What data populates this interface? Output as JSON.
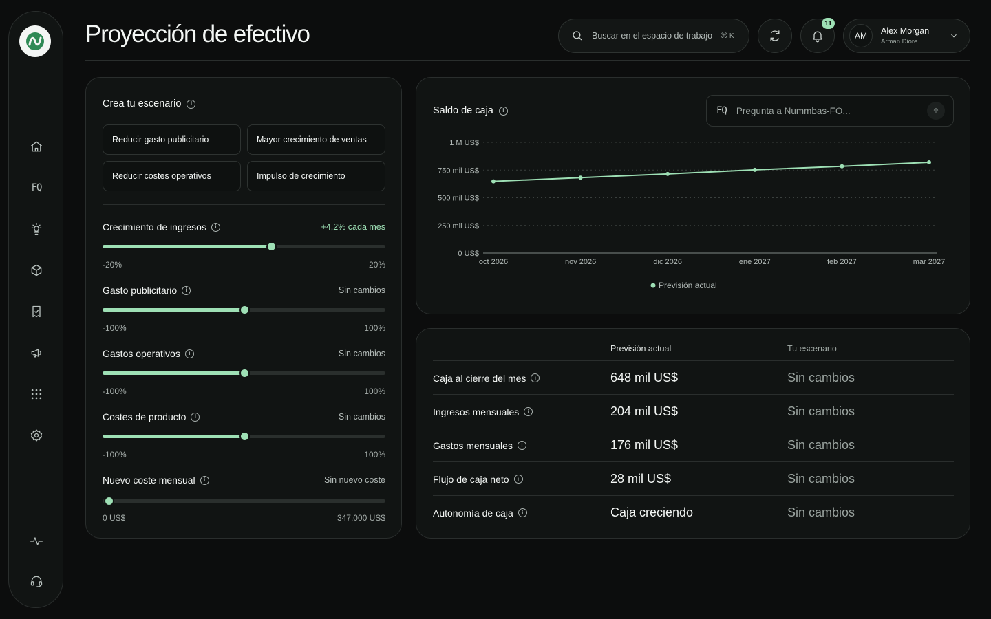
{
  "page": {
    "title": "Proyección de efectivo"
  },
  "sidebar": {
    "logo_icon": "wave-logo-icon",
    "items": [
      {
        "icon": "home-icon"
      },
      {
        "icon": "fq-icon",
        "text": "FQ"
      },
      {
        "icon": "lightbulb-icon"
      },
      {
        "icon": "cube-icon"
      },
      {
        "icon": "receipt-icon"
      },
      {
        "icon": "megaphone-icon"
      },
      {
        "icon": "apps-grid-icon"
      },
      {
        "icon": "gear-icon"
      }
    ],
    "bottom_items": [
      {
        "icon": "activity-icon"
      },
      {
        "icon": "headset-icon"
      }
    ]
  },
  "header": {
    "search": {
      "placeholder": "Buscar en el espacio de trabajo",
      "shortcut": "⌘ K"
    },
    "notifications": {
      "count": "11"
    },
    "user": {
      "initials": "AM",
      "name": "Alex Morgan",
      "org": "Arman Diore"
    }
  },
  "scenario": {
    "title": "Crea tu escenario",
    "chips": [
      "Reducir gasto publicitario",
      "Mayor crecimiento de ventas",
      "Reducir costes operativos",
      "Impulso de crecimiento"
    ],
    "sliders": [
      {
        "label": "Crecimiento de ingresos",
        "value_text": "+4,2% cada mes",
        "min": "-20%",
        "max": "20%",
        "position": 0.595
      },
      {
        "label": "Gasto publicitario",
        "value_text": "Sin cambios",
        "min": "-100%",
        "max": "100%",
        "position": 0.5
      },
      {
        "label": "Gastos operativos",
        "value_text": "Sin cambios",
        "min": "-100%",
        "max": "100%",
        "position": 0.5
      },
      {
        "label": "Costes de producto",
        "value_text": "Sin cambios",
        "min": "-100%",
        "max": "100%",
        "position": 0.5
      },
      {
        "label": "Nuevo coste mensual",
        "value_text": "Sin nuevo coste",
        "min": "0 US$",
        "max": "347.000 US$",
        "position": 0.0
      }
    ]
  },
  "cash_chart": {
    "title": "Saldo de caja",
    "ask": {
      "prefix": "FQ",
      "placeholder": "Pregunta a Nummbas-FO..."
    }
  },
  "chart_data": {
    "type": "line",
    "title": "Saldo de caja",
    "x": [
      "oct 2026",
      "nov 2026",
      "dic 2026",
      "ene 2027",
      "feb 2027",
      "mar 2027"
    ],
    "series": [
      {
        "name": "Previsión actual",
        "values": [
          648000,
          682000,
          715000,
          752000,
          784000,
          820000
        ],
        "color": "#9ee0b5"
      }
    ],
    "ylim": [
      0,
      1000000
    ],
    "y_ticks": [
      0,
      250000,
      500000,
      750000,
      1000000
    ],
    "y_tick_labels": [
      "0 US$",
      "250 mil US$",
      "500 mil US$",
      "750 mil US$",
      "1 M US$"
    ],
    "grid": true,
    "legend": "bottom"
  },
  "summary_table": {
    "columns": [
      "Previsión actual",
      "Tu escenario"
    ],
    "rows": [
      {
        "label": "Caja al cierre del mes",
        "current": "648 mil US$",
        "scenario": "Sin cambios"
      },
      {
        "label": "Ingresos mensuales",
        "current": "204 mil US$",
        "scenario": "Sin cambios"
      },
      {
        "label": "Gastos mensuales",
        "current": "176 mil US$",
        "scenario": "Sin cambios"
      },
      {
        "label": "Flujo de caja neto",
        "current": "28 mil US$",
        "scenario": "Sin cambios"
      },
      {
        "label": "Autonomía de caja",
        "current": "Caja creciendo",
        "scenario": "Sin cambios"
      }
    ]
  },
  "colors": {
    "accent": "#9ee0b5",
    "background": "#0c0d0d",
    "card": "#111413",
    "border": "#2a2e2d"
  }
}
